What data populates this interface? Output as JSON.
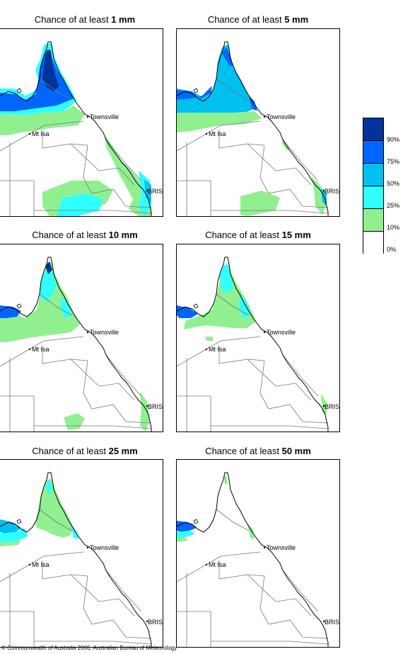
{
  "panels": [
    {
      "prefix": "Chance of at least ",
      "amount": "1 mm",
      "level": 0
    },
    {
      "prefix": "Chance of at least ",
      "amount": "5 mm",
      "level": 1
    },
    {
      "prefix": "Chance of at least ",
      "amount": "10 mm",
      "level": 2
    },
    {
      "prefix": "Chance of at least ",
      "amount": "15 mm",
      "level": 3
    },
    {
      "prefix": "Chance of at least ",
      "amount": "25 mm",
      "level": 4
    },
    {
      "prefix": "Chance of at least ",
      "amount": "50 mm",
      "level": 5
    }
  ],
  "places": {
    "townsville": "Townsville",
    "mt_isa": "Mt Isa",
    "brisbane": "BRIS"
  },
  "legend": {
    "colors": [
      "#00349a",
      "#0066ff",
      "#00c0f0",
      "#30ffff",
      "#90f090",
      "#ffffff"
    ],
    "ticks": [
      "90%",
      "75%",
      "50%",
      "25%",
      "10%",
      "0%"
    ]
  },
  "copyright": "© Commonwealth of Australia 2006, Australian Bureau of Meteorology"
}
